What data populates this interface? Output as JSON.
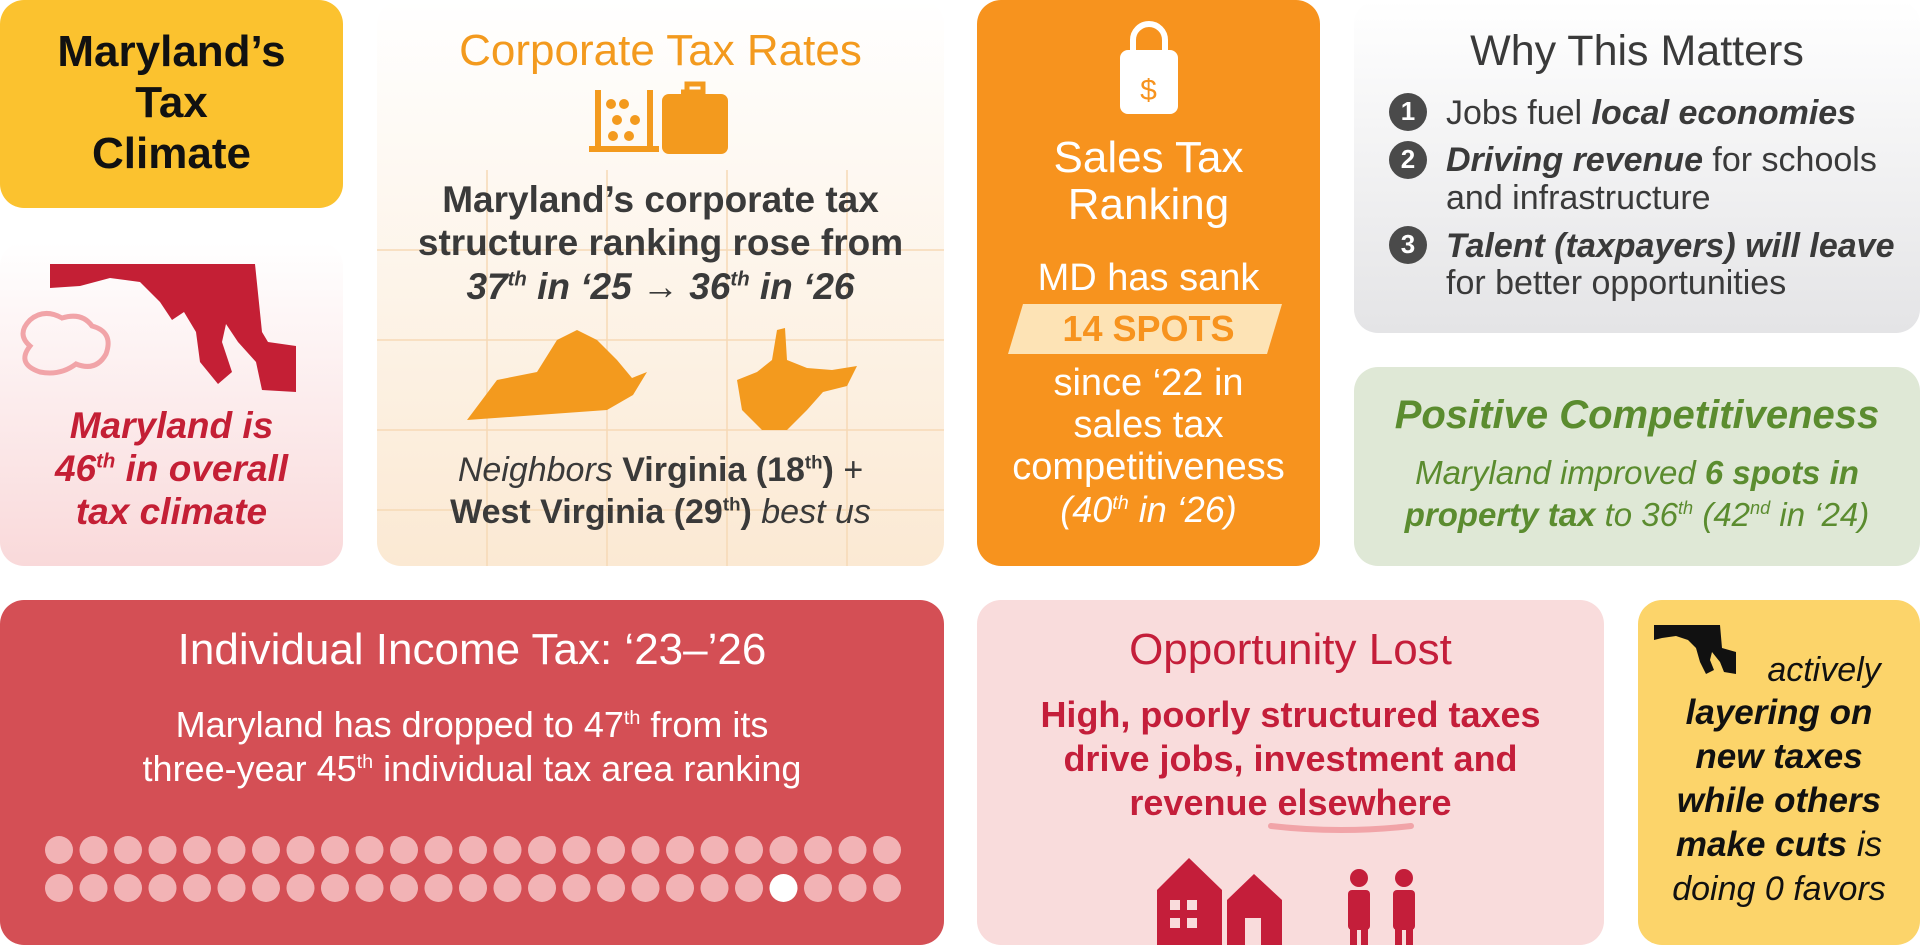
{
  "title_card": {
    "title": [
      "Maryland’s",
      "Tax",
      "Climate"
    ]
  },
  "overall_card": {
    "lines": [
      "Maryland is",
      "46",
      "th",
      " in overall",
      "tax climate"
    ]
  },
  "corporate": {
    "heading": "Corporate Tax Rates",
    "body": [
      "Maryland’s corporate tax",
      "structure ranking rose from",
      "37",
      "th",
      " in ‘25 → 36",
      "th",
      " in ‘26"
    ],
    "neighbors": [
      "Neighbors ",
      "Virginia (18",
      "th",
      ")",
      " +",
      "West Virginia (29",
      "th",
      ")",
      " best us"
    ]
  },
  "sales": {
    "icon": "$",
    "heading": [
      "Sales Tax",
      "Ranking"
    ],
    "intro": "MD has sank",
    "badge": "14 SPOTS",
    "body": [
      "since ‘22 in",
      "sales tax",
      "competitiveness"
    ],
    "note": [
      "(40",
      "th",
      " in ‘26)"
    ]
  },
  "why": {
    "heading": "Why This Matters",
    "items": [
      {
        "num": "1",
        "parts": [
          "Jobs fuel ",
          "local economies"
        ]
      },
      {
        "num": "2",
        "parts": [
          "Driving revenue",
          " for schools",
          "and infrastructure"
        ]
      },
      {
        "num": "3",
        "parts": [
          "Talent (taxpayers) will leave",
          "for better opportunities"
        ]
      }
    ]
  },
  "positive": {
    "heading": "Positive Competitiveness",
    "body": [
      "Maryland improved ",
      "6 spots in",
      "property tax",
      " to 36",
      "th",
      " (42",
      "nd",
      " in ‘24)"
    ]
  },
  "income": {
    "heading": "Individual Income Tax: ‘23–’26",
    "body": [
      "Maryland has dropped to ",
      47,
      "th",
      " from its",
      "three-year ",
      45,
      "th",
      " individual tax area ranking"
    ]
  },
  "opportunity": {
    "heading": "Opportunity Lost",
    "body": [
      "High, poorly structured taxes",
      "drive jobs, investment and",
      "revenue ",
      "elsewhere"
    ]
  },
  "layering": {
    "body": [
      "actively",
      "layering on",
      "new taxes",
      "while others",
      "make cuts",
      " is",
      "doing 0 favors"
    ]
  }
}
